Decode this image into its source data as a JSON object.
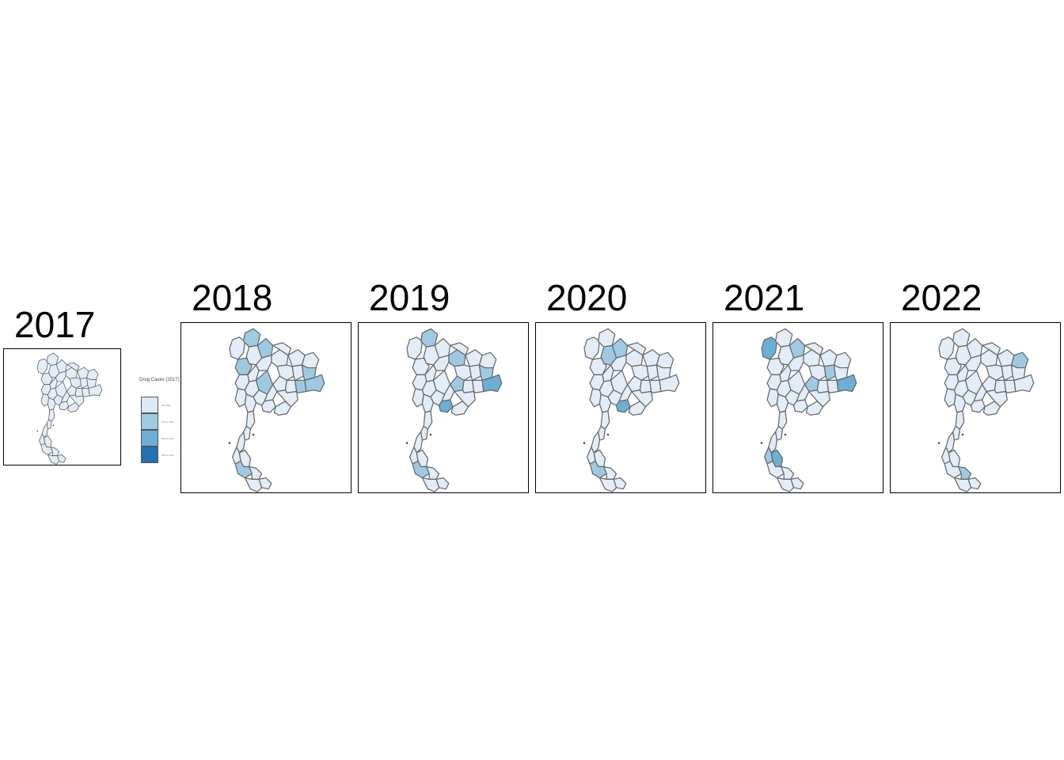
{
  "panels": [
    {
      "year": "2017",
      "highlight": {}
    },
    {
      "year": "2018",
      "highlight": {
        "n1": 1,
        "n2": 1,
        "n4": 1,
        "e5": 1,
        "e8": 1,
        "e9": 1,
        "c2": 1,
        "s3": 1
      }
    },
    {
      "year": "2019",
      "highlight": {
        "n1": 1,
        "n3": 1,
        "e5": 1,
        "e6": 1,
        "e9": 2,
        "c4": 2,
        "s3": 1
      }
    },
    {
      "year": "2020",
      "highlight": {
        "n2": 1,
        "n5": 1,
        "c4": 2,
        "s3": 1
      }
    },
    {
      "year": "2021",
      "highlight": {
        "n0": 2,
        "n2": 1,
        "e4": 1,
        "e6": 1,
        "e9": 2,
        "s1": 1,
        "s2": 2
      }
    },
    {
      "year": "2022",
      "highlight": {
        "e2": 1,
        "s4": 1
      }
    }
  ],
  "legend": {
    "title": "Drug Cases (2017)",
    "classes": [
      {
        "label": "0 to 0.0x",
        "color": "#deebf7"
      },
      {
        "label": "0.0x to 0.0x",
        "color": "#9ecae1"
      },
      {
        "label": "0.0x to 0.0x",
        "color": "#6baed6"
      },
      {
        "label": "0.0x to 0.0x",
        "color": "#2171b5"
      }
    ]
  },
  "map_style": {
    "base_fill": "#e3edf8",
    "border": "#666666"
  }
}
